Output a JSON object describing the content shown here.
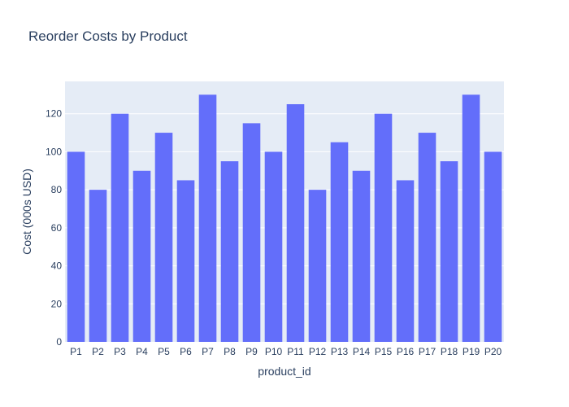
{
  "chart_data": {
    "type": "bar",
    "title": "Reorder Costs by Product",
    "xlabel": "product_id",
    "ylabel": "Cost (000s USD)",
    "categories": [
      "P1",
      "P2",
      "P3",
      "P4",
      "P5",
      "P6",
      "P7",
      "P8",
      "P9",
      "P10",
      "P11",
      "P12",
      "P13",
      "P14",
      "P15",
      "P16",
      "P17",
      "P18",
      "P19",
      "P20"
    ],
    "values": [
      100,
      80,
      120,
      90,
      110,
      85,
      130,
      95,
      115,
      100,
      125,
      80,
      105,
      90,
      120,
      85,
      110,
      95,
      130,
      100
    ],
    "ylim": [
      0,
      137
    ],
    "yticks": [
      0,
      20,
      40,
      60,
      80,
      100,
      120
    ],
    "grid": true,
    "colors": {
      "bar": "#636efa",
      "plot_bg": "#e5ecf6",
      "grid": "#ffffff",
      "text": "#2a3f5f"
    }
  }
}
